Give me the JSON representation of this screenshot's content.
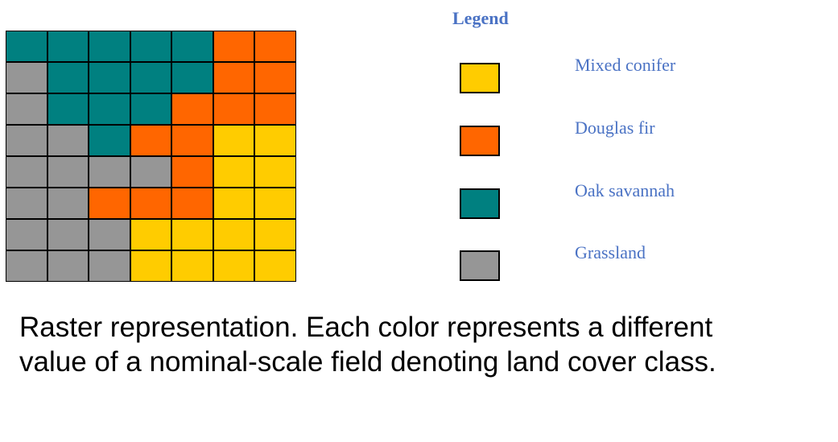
{
  "legend": {
    "title": "Legend",
    "items": [
      {
        "label": "Mixed conifer",
        "color": "#FFCC00",
        "code": "M"
      },
      {
        "label": "Douglas fir",
        "color": "#FF6600",
        "code": "D"
      },
      {
        "label": "Oak savannah",
        "color": "#008080",
        "code": "O"
      },
      {
        "label": "Grassland",
        "color": "#969696",
        "code": "G"
      }
    ]
  },
  "raster": {
    "rows": 8,
    "cols": 7,
    "cells": [
      [
        "O",
        "O",
        "O",
        "O",
        "O",
        "D",
        "D"
      ],
      [
        "G",
        "O",
        "O",
        "O",
        "O",
        "D",
        "D"
      ],
      [
        "G",
        "O",
        "O",
        "O",
        "D",
        "D",
        "D"
      ],
      [
        "G",
        "G",
        "O",
        "D",
        "D",
        "M",
        "M"
      ],
      [
        "G",
        "G",
        "G",
        "G",
        "D",
        "M",
        "M"
      ],
      [
        "G",
        "G",
        "D",
        "D",
        "D",
        "M",
        "M"
      ],
      [
        "G",
        "G",
        "G",
        "M",
        "M",
        "M",
        "M"
      ],
      [
        "G",
        "G",
        "G",
        "M",
        "M",
        "M",
        "M"
      ]
    ]
  },
  "caption": {
    "line1": "Raster representation. Each color represents a different",
    "line2": "value of a nominal-scale field denoting land cover class."
  }
}
